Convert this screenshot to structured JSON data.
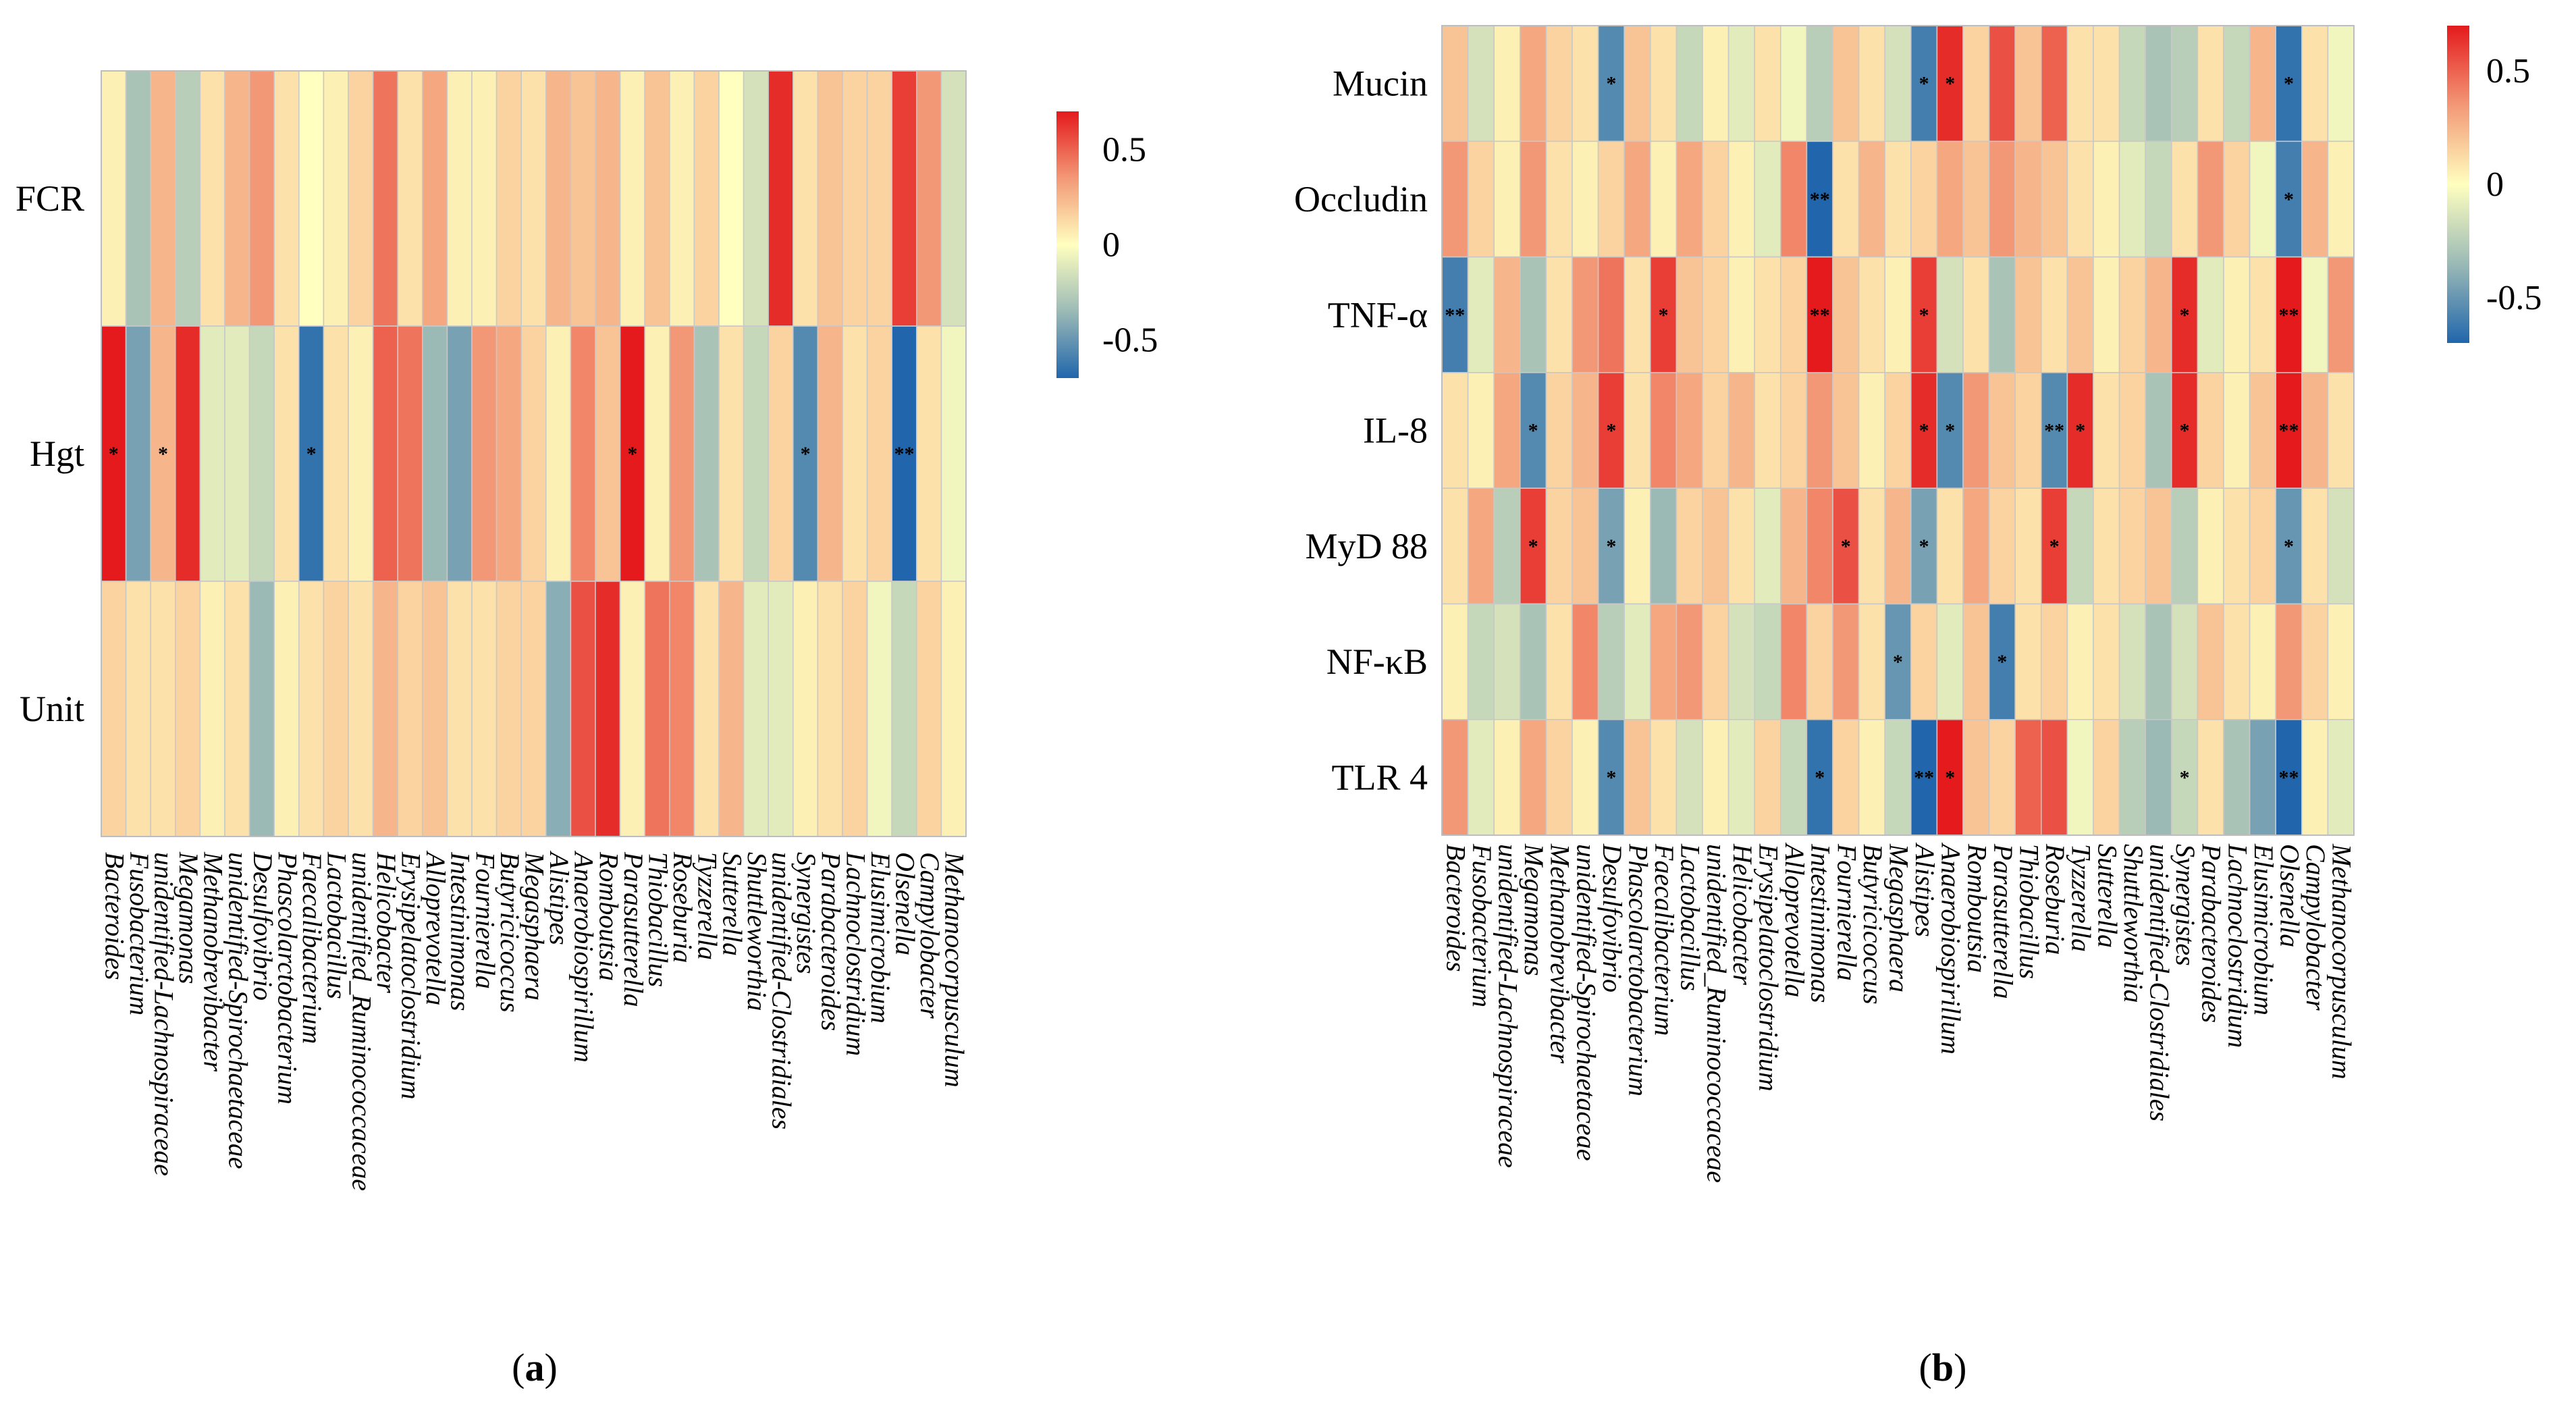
{
  "chart_data": [
    {
      "panel": "a",
      "type": "heatmap",
      "caption": {
        "open": "(",
        "letter": "a",
        "close": ")"
      },
      "rows": [
        "FCR",
        "Hgt",
        "Unit"
      ],
      "columns": [
        "Bacteroides",
        "Fusobacterium",
        "unidentified-Lachnospiraceae",
        "Megamonas",
        "Methanobrevibacter",
        "unidentified-Spirochaetaceae",
        "Desulfovibrio",
        "Phascolarctobacterium",
        "Faecalibacterium",
        "Lactobacillus",
        "unidentified_Ruminococcaceae",
        "Helicobacter",
        "Erysipelatoclostridium",
        "Alloprevotella",
        "Intestinimonas",
        "Fournierella",
        "Butyricicoccus",
        "Megasphaera",
        "Alistipes",
        "Anaerobiospirillum",
        "Romboutsia",
        "Parasutterella",
        "Thiobacillus",
        "Roseburia",
        "Tyzzerella",
        "Sutterella",
        "Shuttleworthia",
        "unidentified-Clostridiales",
        "Synergistes",
        "Parabacteroides",
        "Lachnoclostridium",
        "Elusimicrobium",
        "Olsenella",
        "Campylobacter",
        "Methanocorpusculum"
      ],
      "values": [
        [
          0.05,
          -0.3,
          0.25,
          -0.25,
          0.1,
          0.25,
          0.35,
          0.1,
          0.0,
          0.05,
          0.15,
          0.45,
          0.1,
          0.3,
          0.05,
          0.05,
          0.15,
          0.1,
          0.25,
          0.2,
          0.25,
          0.05,
          0.2,
          0.05,
          0.15,
          0.0,
          -0.15,
          0.65,
          0.1,
          0.2,
          0.15,
          0.15,
          0.6,
          0.35,
          -0.15
        ],
        [
          0.72,
          -0.45,
          0.25,
          0.65,
          -0.1,
          -0.1,
          -0.2,
          0.1,
          -0.65,
          0.1,
          0.05,
          0.5,
          0.45,
          -0.35,
          -0.45,
          0.35,
          0.3,
          0.15,
          0.05,
          0.4,
          0.2,
          0.7,
          0.05,
          0.35,
          -0.3,
          0.1,
          -0.2,
          0.15,
          -0.55,
          0.25,
          0.1,
          0.15,
          -0.72,
          0.1,
          -0.05
        ],
        [
          0.15,
          0.1,
          0.1,
          0.15,
          0.05,
          0.1,
          -0.35,
          0.05,
          0.1,
          0.15,
          0.1,
          0.25,
          0.15,
          0.2,
          0.1,
          0.1,
          0.15,
          0.15,
          -0.4,
          0.55,
          0.65,
          0.05,
          0.45,
          0.4,
          0.1,
          0.25,
          -0.1,
          -0.1,
          0.05,
          0.1,
          0.15,
          -0.05,
          -0.2,
          0.15,
          0.05
        ]
      ],
      "significance": [
        [
          "",
          "",
          "",
          "",
          "",
          "",
          "",
          "",
          "",
          "",
          "",
          "",
          "",
          "",
          "",
          "",
          "",
          "",
          "",
          "",
          "",
          "",
          "",
          "",
          "",
          "",
          "",
          "",
          "",
          "",
          "",
          "",
          "",
          "",
          ""
        ],
        [
          "*",
          "",
          "*",
          "",
          "",
          "",
          "",
          "",
          "*",
          "",
          "",
          "",
          "",
          "",
          "",
          "",
          "",
          "",
          "",
          "",
          "",
          "*",
          "",
          "",
          "",
          "",
          "",
          "",
          "*",
          "",
          "",
          "",
          "**",
          "",
          ""
        ],
        [
          "",
          "",
          "",
          "",
          "",
          "",
          "",
          "",
          "",
          "",
          "",
          "",
          "",
          "",
          "",
          "",
          "",
          "",
          "",
          "",
          "",
          "",
          "",
          "",
          "",
          "",
          "",
          "",
          "",
          "",
          "",
          "",
          "",
          "",
          ""
        ]
      ],
      "colorbar": {
        "range": [
          -0.7,
          0.7
        ],
        "ticks": [
          0.5,
          0,
          -0.5
        ],
        "tick_labels": [
          "0.5",
          "0",
          "-0.5"
        ]
      },
      "colors": {
        "low": "#2166ac",
        "mid": "#ffffbf",
        "high": "#e41a1c"
      }
    },
    {
      "panel": "b",
      "type": "heatmap",
      "caption": {
        "open": "(",
        "letter": "b",
        "close": ")"
      },
      "rows": [
        "Mucin",
        "Occludin",
        "TNF-α",
        "IL-8",
        "MyD 88",
        "NF-κB",
        "TLR 4"
      ],
      "columns": [
        "Bacteroides",
        "Fusobacterium",
        "unidentified-Lachnospiraceae",
        "Megamonas",
        "Methanobrevibacter",
        "unidentified-Spirochaetaceae",
        "Desulfovibrio",
        "Phascolarctobacterium",
        "Faecalibacterium",
        "Lactobacillus",
        "unidentified_Ruminococcaceae",
        "Helicobacter",
        "Erysipelatoclostridium",
        "Alloprevotella",
        "Intestinimonas",
        "Fournierella",
        "Butyricicoccus",
        "Megasphaera",
        "Alistipes",
        "Anaerobiospirillum",
        "Romboutsia",
        "Parasutterella",
        "Thiobacillus",
        "Roseburia",
        "Tyzzerella",
        "Sutterella",
        "Shuttleworthia",
        "unidentified-Clostridiales",
        "Synergistes",
        "Parabacteroides",
        "Lachnoclostridium",
        "Elusimicrobium",
        "Olsenella",
        "Campylobacter",
        "Methanocorpusculum"
      ],
      "values": [
        [
          0.2,
          -0.15,
          0.05,
          0.3,
          0.15,
          0.1,
          -0.55,
          0.2,
          0.1,
          -0.2,
          0.05,
          -0.1,
          0.1,
          -0.05,
          -0.25,
          0.2,
          0.1,
          -0.15,
          -0.6,
          0.65,
          0.15,
          0.55,
          0.2,
          0.5,
          0.1,
          0.1,
          -0.2,
          -0.3,
          -0.25,
          0.1,
          -0.2,
          0.25,
          -0.65,
          0.1,
          -0.05
        ],
        [
          0.35,
          0.15,
          0.05,
          0.35,
          0.1,
          0.05,
          0.15,
          0.3,
          0.05,
          0.3,
          0.15,
          0.05,
          -0.1,
          0.4,
          -0.7,
          0.1,
          0.25,
          0.1,
          0.15,
          0.3,
          0.2,
          0.35,
          0.25,
          0.2,
          0.1,
          0.05,
          -0.1,
          -0.2,
          0.1,
          0.35,
          0.15,
          -0.05,
          -0.6,
          0.25,
          0.05
        ],
        [
          -0.6,
          -0.1,
          0.25,
          -0.3,
          0.1,
          0.35,
          0.45,
          0.1,
          0.6,
          0.2,
          0.15,
          0.05,
          0.1,
          0.15,
          0.7,
          0.2,
          0.1,
          0.05,
          0.6,
          -0.15,
          0.1,
          -0.3,
          0.2,
          0.1,
          0.2,
          0.05,
          0.15,
          0.25,
          0.65,
          -0.1,
          0.05,
          0.1,
          0.75,
          -0.05,
          0.35
        ],
        [
          0.1,
          0.05,
          0.3,
          -0.55,
          0.15,
          0.25,
          0.6,
          0.1,
          0.4,
          0.3,
          0.15,
          0.25,
          0.1,
          0.15,
          0.35,
          0.2,
          0.05,
          0.15,
          0.65,
          -0.55,
          0.35,
          0.2,
          0.15,
          -0.55,
          0.65,
          0.1,
          0.15,
          -0.3,
          0.65,
          0.15,
          0.05,
          0.2,
          0.7,
          0.25,
          0.1
        ],
        [
          0.1,
          0.3,
          -0.25,
          0.6,
          0.15,
          0.2,
          -0.45,
          0.05,
          -0.35,
          0.15,
          0.2,
          0.1,
          -0.1,
          0.25,
          0.4,
          0.55,
          0.1,
          0.25,
          -0.45,
          0.1,
          0.3,
          0.15,
          0.1,
          0.6,
          -0.2,
          0.1,
          0.15,
          0.2,
          -0.25,
          0.05,
          0.1,
          0.15,
          -0.5,
          0.1,
          -0.15
        ],
        [
          0.05,
          -0.2,
          -0.15,
          -0.3,
          0.1,
          0.4,
          -0.25,
          -0.1,
          0.3,
          0.35,
          0.15,
          -0.15,
          -0.2,
          0.4,
          0.15,
          0.35,
          0.1,
          -0.5,
          0.15,
          -0.1,
          0.2,
          -0.6,
          0.1,
          0.15,
          0.05,
          0.1,
          -0.15,
          -0.3,
          -0.15,
          0.2,
          0.1,
          0.05,
          0.35,
          0.15,
          0.05
        ],
        [
          0.35,
          -0.1,
          0.05,
          0.3,
          0.15,
          0.05,
          -0.55,
          0.2,
          0.1,
          -0.15,
          0.05,
          -0.1,
          0.15,
          -0.2,
          -0.65,
          0.15,
          0.05,
          -0.2,
          -0.7,
          0.7,
          0.2,
          0.15,
          0.5,
          0.55,
          -0.05,
          0.15,
          -0.25,
          -0.35,
          -0.2,
          0.1,
          -0.3,
          -0.45,
          -0.7,
          0.05,
          -0.1
        ]
      ],
      "significance": [
        [
          "",
          "",
          "",
          "",
          "",
          "",
          "*",
          "",
          "",
          "",
          "",
          "",
          "",
          "",
          "",
          "",
          "",
          "",
          "*",
          "*",
          "",
          "",
          "",
          "",
          "",
          "",
          "",
          "",
          "",
          "",
          "",
          "",
          "*",
          "",
          ""
        ],
        [
          "",
          "",
          "",
          "",
          "",
          "",
          "",
          "",
          "",
          "",
          "",
          "",
          "",
          "",
          "**",
          "",
          "",
          "",
          "",
          "",
          "",
          "",
          "",
          "",
          "",
          "",
          "",
          "",
          "",
          "",
          "",
          "",
          "*",
          "",
          ""
        ],
        [
          "**",
          "",
          "",
          "",
          "",
          "",
          "",
          "",
          "*",
          "",
          "",
          "",
          "",
          "",
          "**",
          "",
          "",
          "",
          "*",
          "",
          "",
          "",
          "",
          "",
          "",
          "",
          "",
          "",
          "*",
          "",
          "",
          "",
          "**",
          "",
          ""
        ],
        [
          "",
          "",
          "",
          "*",
          "",
          "",
          "*",
          "",
          "",
          "",
          "",
          "",
          "",
          "",
          "",
          "",
          "",
          "",
          "*",
          "*",
          "",
          "",
          "",
          "**",
          "*",
          "",
          "",
          "",
          "*",
          "",
          "",
          "",
          "**",
          "",
          ""
        ],
        [
          "",
          "",
          "",
          "*",
          "",
          "",
          "*",
          "",
          "",
          "",
          "",
          "",
          "",
          "",
          "",
          "*",
          "",
          "",
          "*",
          "",
          "",
          "",
          "",
          "*",
          "",
          "",
          "",
          "",
          "",
          "",
          "",
          "",
          "*",
          "",
          ""
        ],
        [
          "",
          "",
          "",
          "",
          "",
          "",
          "",
          "",
          "",
          "",
          "",
          "",
          "",
          "",
          "",
          "",
          "",
          "*",
          "",
          "",
          "",
          "*",
          "",
          "",
          "",
          "",
          "",
          "",
          "",
          "",
          "",
          "",
          "",
          "",
          ""
        ],
        [
          "",
          "",
          "",
          "",
          "",
          "",
          "*",
          "",
          "",
          "",
          "",
          "",
          "",
          "",
          "*",
          "",
          "",
          "",
          "**",
          "*",
          "",
          "",
          "",
          "",
          "",
          "",
          "",
          "",
          "*",
          "",
          "",
          "",
          "**",
          "",
          ""
        ]
      ],
      "colorbar": {
        "range": [
          -0.7,
          0.7
        ],
        "ticks": [
          0.5,
          0,
          -0.5
        ],
        "tick_labels": [
          "0.5",
          "0",
          "-0.5"
        ]
      },
      "colors": {
        "low": "#2166ac",
        "mid": "#ffffbf",
        "high": "#e41a1c"
      }
    }
  ]
}
